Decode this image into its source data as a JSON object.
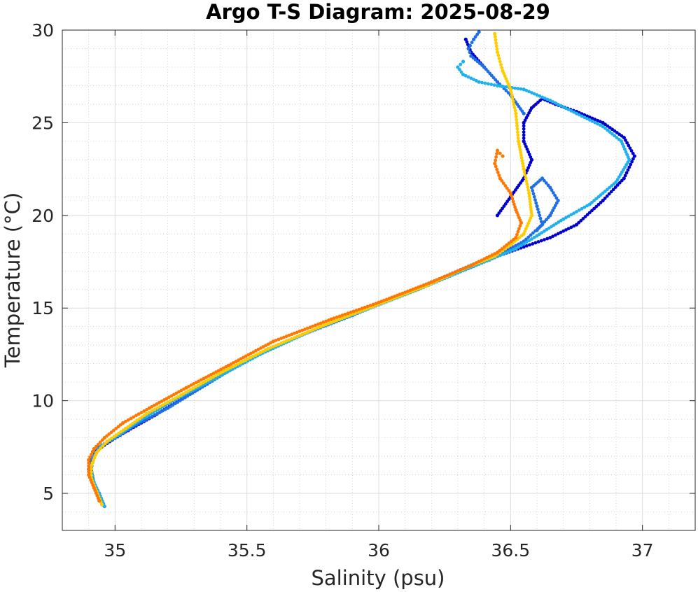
{
  "chart_data": {
    "type": "scatter",
    "title": "Argo T-S Diagram: 2025-08-29",
    "xlabel": "Salinity (psu)",
    "ylabel": "Temperature (°C)",
    "xlim": [
      34.8,
      37.2
    ],
    "ylim": [
      3,
      30
    ],
    "xticks": [
      35,
      35.5,
      36,
      36.5,
      37
    ],
    "xtick_labels": [
      "35",
      "35.5",
      "36",
      "36.5",
      "37"
    ],
    "yticks": [
      5,
      10,
      15,
      20,
      25,
      30
    ],
    "ytick_labels": [
      "5",
      "10",
      "15",
      "20",
      "25",
      "30"
    ],
    "grid": true,
    "minor_grid": true,
    "legend": "none",
    "series_colors": [
      "#0000cc",
      "#1e6fe6",
      "#1fb0ee",
      "#ffcc00",
      "#ff7700"
    ],
    "series": [
      {
        "x": [
          34.96,
          34.94,
          34.92,
          34.91,
          34.91,
          34.93,
          34.98,
          35.05,
          35.15,
          35.3,
          35.45,
          35.6,
          35.8,
          36.0,
          36.2,
          36.35,
          36.45,
          36.55,
          36.65,
          36.75,
          36.85,
          36.93,
          36.97,
          36.93,
          36.85,
          36.75,
          36.67,
          36.62,
          36.58,
          36.55,
          36.55,
          36.58,
          36.55,
          36.5,
          36.45,
          36.4,
          36.35,
          36.33
        ],
        "y": [
          4.3,
          5.0,
          5.5,
          6.2,
          6.8,
          7.3,
          7.8,
          8.4,
          9.2,
          10.5,
          11.8,
          12.9,
          14.1,
          15.2,
          16.4,
          17.2,
          17.8,
          18.3,
          18.8,
          19.5,
          20.8,
          22.0,
          23.2,
          24.2,
          25.0,
          25.6,
          26.0,
          26.3,
          25.8,
          25.0,
          24.0,
          23.0,
          22.0,
          21.0,
          20.0,
          28.0,
          28.8,
          29.5
        ]
      },
      {
        "x": [
          34.95,
          34.93,
          34.91,
          34.9,
          34.91,
          34.94,
          35.0,
          35.08,
          35.2,
          35.35,
          35.5,
          35.7,
          35.9,
          36.1,
          36.25,
          36.38,
          36.47,
          36.55,
          36.62,
          36.6,
          36.58,
          36.62,
          36.65,
          36.68,
          36.65,
          36.6,
          36.55,
          36.5,
          36.45,
          36.4,
          36.35,
          36.34,
          36.36,
          36.38
        ],
        "y": [
          4.4,
          5.1,
          5.7,
          6.3,
          6.9,
          7.5,
          8.0,
          8.7,
          9.6,
          10.9,
          12.2,
          13.5,
          14.6,
          15.8,
          16.7,
          17.5,
          18.0,
          18.6,
          19.5,
          20.5,
          21.5,
          22.0,
          21.5,
          20.8,
          20.0,
          19.2,
          25.5,
          26.5,
          27.2,
          28.0,
          28.6,
          29.0,
          29.5,
          29.9
        ]
      },
      {
        "x": [
          34.96,
          34.94,
          34.92,
          34.91,
          34.92,
          34.95,
          35.02,
          35.1,
          35.22,
          35.38,
          35.55,
          35.75,
          35.95,
          36.15,
          36.3,
          36.42,
          36.52,
          36.6,
          36.7,
          36.8,
          36.9,
          36.95,
          36.92,
          36.85,
          36.75,
          36.65,
          36.55,
          36.45,
          36.38,
          36.32,
          36.3,
          36.32
        ],
        "y": [
          4.3,
          5.0,
          5.6,
          6.3,
          7.0,
          7.6,
          8.2,
          9.0,
          10.0,
          11.2,
          12.5,
          13.8,
          14.9,
          16.0,
          16.9,
          17.6,
          18.2,
          18.9,
          19.8,
          20.6,
          21.8,
          23.0,
          24.0,
          24.8,
          25.5,
          26.2,
          26.8,
          27.0,
          27.2,
          27.6,
          28.0,
          28.3
        ]
      },
      {
        "x": [
          34.95,
          34.93,
          34.91,
          34.91,
          34.93,
          34.97,
          35.04,
          35.12,
          35.25,
          35.4,
          35.58,
          35.78,
          35.98,
          36.18,
          36.32,
          36.44,
          36.5,
          36.55,
          36.58,
          36.57,
          36.55,
          36.53,
          36.52,
          36.5,
          36.47,
          36.45,
          36.44
        ],
        "y": [
          4.4,
          5.1,
          5.8,
          6.5,
          7.2,
          7.8,
          8.5,
          9.3,
          10.3,
          11.5,
          12.8,
          14.0,
          15.1,
          16.2,
          17.1,
          17.8,
          18.4,
          19.0,
          20.0,
          21.2,
          22.5,
          24.0,
          25.5,
          26.8,
          27.8,
          28.8,
          29.8
        ]
      },
      {
        "x": [
          34.94,
          34.92,
          34.9,
          34.9,
          34.92,
          34.96,
          35.03,
          35.13,
          35.27,
          35.43,
          35.6,
          35.82,
          36.0,
          36.2,
          36.35,
          36.45,
          36.52,
          36.54,
          36.52,
          36.5,
          36.46,
          36.44,
          36.45,
          36.47
        ],
        "y": [
          4.6,
          5.3,
          6.0,
          6.8,
          7.4,
          8.0,
          8.8,
          9.6,
          10.7,
          11.9,
          13.2,
          14.4,
          15.3,
          16.4,
          17.3,
          18.0,
          18.8,
          19.6,
          20.3,
          21.2,
          22.0,
          22.8,
          23.5,
          23.2
        ]
      }
    ]
  }
}
